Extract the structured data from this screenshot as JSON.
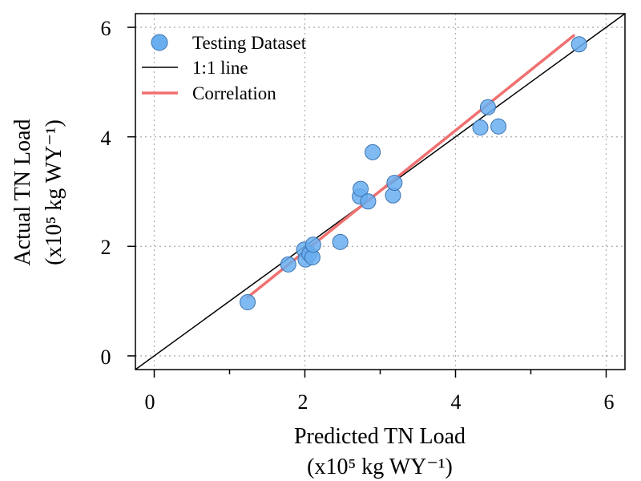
{
  "chart_data": {
    "type": "scatter",
    "title": "",
    "xlabel": "Predicted TN Load",
    "xlabel_unit": "(x10⁵ kg WY⁻¹)",
    "ylabel": "Actual TN Load",
    "ylabel_unit": "(x10⁵ kg WY⁻¹)",
    "xlim": [
      -0.25,
      6.25
    ],
    "ylim": [
      -0.25,
      6.25
    ],
    "x_ticks": [
      "0",
      "2",
      "4",
      "6"
    ],
    "y_ticks": [
      "0",
      "2",
      "4",
      "6"
    ],
    "tick_values": [
      0,
      2,
      4,
      6
    ],
    "grid": true,
    "legend_position": "top-left",
    "series": [
      {
        "name": "Testing Dataset",
        "kind": "points",
        "color": "#6aaef0",
        "points": [
          {
            "x": 1.24,
            "y": 0.98
          },
          {
            "x": 1.78,
            "y": 1.67
          },
          {
            "x": 1.99,
            "y": 1.94
          },
          {
            "x": 2.01,
            "y": 1.76
          },
          {
            "x": 2.06,
            "y": 1.86
          },
          {
            "x": 2.1,
            "y": 1.8
          },
          {
            "x": 2.11,
            "y": 2.03
          },
          {
            "x": 2.47,
            "y": 2.08
          },
          {
            "x": 2.73,
            "y": 2.91
          },
          {
            "x": 2.74,
            "y": 3.05
          },
          {
            "x": 2.84,
            "y": 2.82
          },
          {
            "x": 2.9,
            "y": 3.72
          },
          {
            "x": 3.17,
            "y": 2.93
          },
          {
            "x": 3.19,
            "y": 3.16
          },
          {
            "x": 4.33,
            "y": 4.17
          },
          {
            "x": 4.43,
            "y": 4.54
          },
          {
            "x": 4.57,
            "y": 4.19
          },
          {
            "x": 5.64,
            "y": 5.69
          }
        ]
      },
      {
        "name": "1:1 line",
        "kind": "line",
        "color": "#000000",
        "x": [
          -0.25,
          6.25
        ],
        "y": [
          -0.25,
          6.25
        ]
      },
      {
        "name": "Correlation",
        "kind": "line",
        "color": "#f07070",
        "x": [
          1.24,
          5.57
        ],
        "y": [
          1.07,
          5.85
        ]
      }
    ]
  }
}
